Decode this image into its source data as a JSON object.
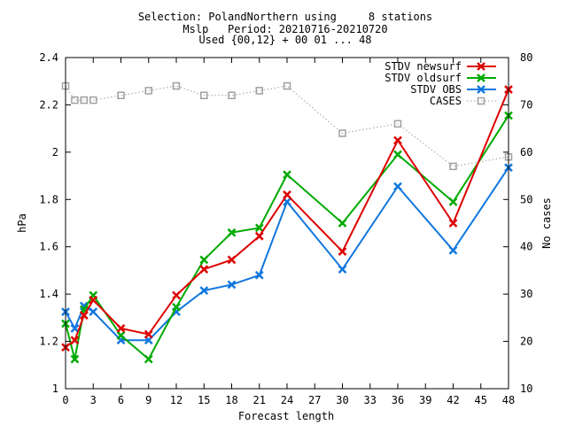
{
  "chart_data": {
    "type": "line",
    "title_lines": [
      "Selection: PolandNorthern using     8 stations",
      "Mslp   Period: 20210716-20210720",
      "Used {00,12} + 00 01 ... 48"
    ],
    "xlabel": "Forecast length",
    "ylabel": "hPa",
    "y2label": "No cases",
    "xlim": [
      0,
      48
    ],
    "ylim": [
      1,
      2.4
    ],
    "y2lim": [
      10,
      80
    ],
    "xticks": [
      0,
      3,
      6,
      9,
      12,
      15,
      18,
      21,
      24,
      27,
      30,
      33,
      36,
      39,
      42,
      45,
      48
    ],
    "yticks": [
      "1",
      "1.2",
      "1.4",
      "1.6",
      "1.8",
      "2",
      "2.2",
      "2.4"
    ],
    "y2ticks": [
      "10",
      "20",
      "30",
      "40",
      "50",
      "60",
      "70",
      "80"
    ],
    "grid": false,
    "legend_position": "top-right",
    "series": [
      {
        "name": "STDV newsurf",
        "axis": "left",
        "color": "#dd0000",
        "marker": "x",
        "style": "solid",
        "x": [
          0,
          1,
          2,
          3,
          6,
          9,
          12,
          15,
          18,
          21,
          24,
          30,
          36,
          42,
          48
        ],
        "y": [
          1.175,
          1.205,
          1.31,
          1.375,
          1.255,
          1.23,
          1.395,
          1.505,
          1.545,
          1.645,
          1.82,
          1.58,
          2.05,
          1.7,
          2.265
        ]
      },
      {
        "name": "STDV oldsurf",
        "axis": "left",
        "color": "#00aa00",
        "marker": "x",
        "style": "solid",
        "x": [
          0,
          1,
          2,
          3,
          6,
          9,
          12,
          15,
          18,
          21,
          24,
          30,
          36,
          42,
          48
        ],
        "y": [
          1.275,
          1.125,
          1.335,
          1.395,
          1.225,
          1.125,
          1.345,
          1.545,
          1.66,
          1.68,
          1.905,
          1.7,
          1.99,
          1.79,
          2.155
        ]
      },
      {
        "name": "STDV OBS",
        "axis": "left",
        "color": "#1177dd",
        "marker": "x",
        "style": "solid",
        "x": [
          0,
          1,
          2,
          3,
          6,
          9,
          12,
          15,
          18,
          21,
          24,
          30,
          36,
          42,
          48
        ],
        "y": [
          1.325,
          1.255,
          1.35,
          1.325,
          1.205,
          1.205,
          1.325,
          1.415,
          1.44,
          1.48,
          1.79,
          1.505,
          1.855,
          1.585,
          1.935
        ]
      },
      {
        "name": "CASES",
        "axis": "right",
        "color": "#a0a0a0",
        "marker": "square",
        "style": "dotted",
        "x": [
          0,
          1,
          2,
          3,
          6,
          9,
          12,
          15,
          18,
          21,
          24,
          30,
          36,
          42,
          48
        ],
        "y": [
          74,
          71,
          71,
          71,
          72,
          73,
          74,
          72,
          72,
          73,
          74,
          64,
          66,
          57,
          59
        ]
      }
    ]
  }
}
